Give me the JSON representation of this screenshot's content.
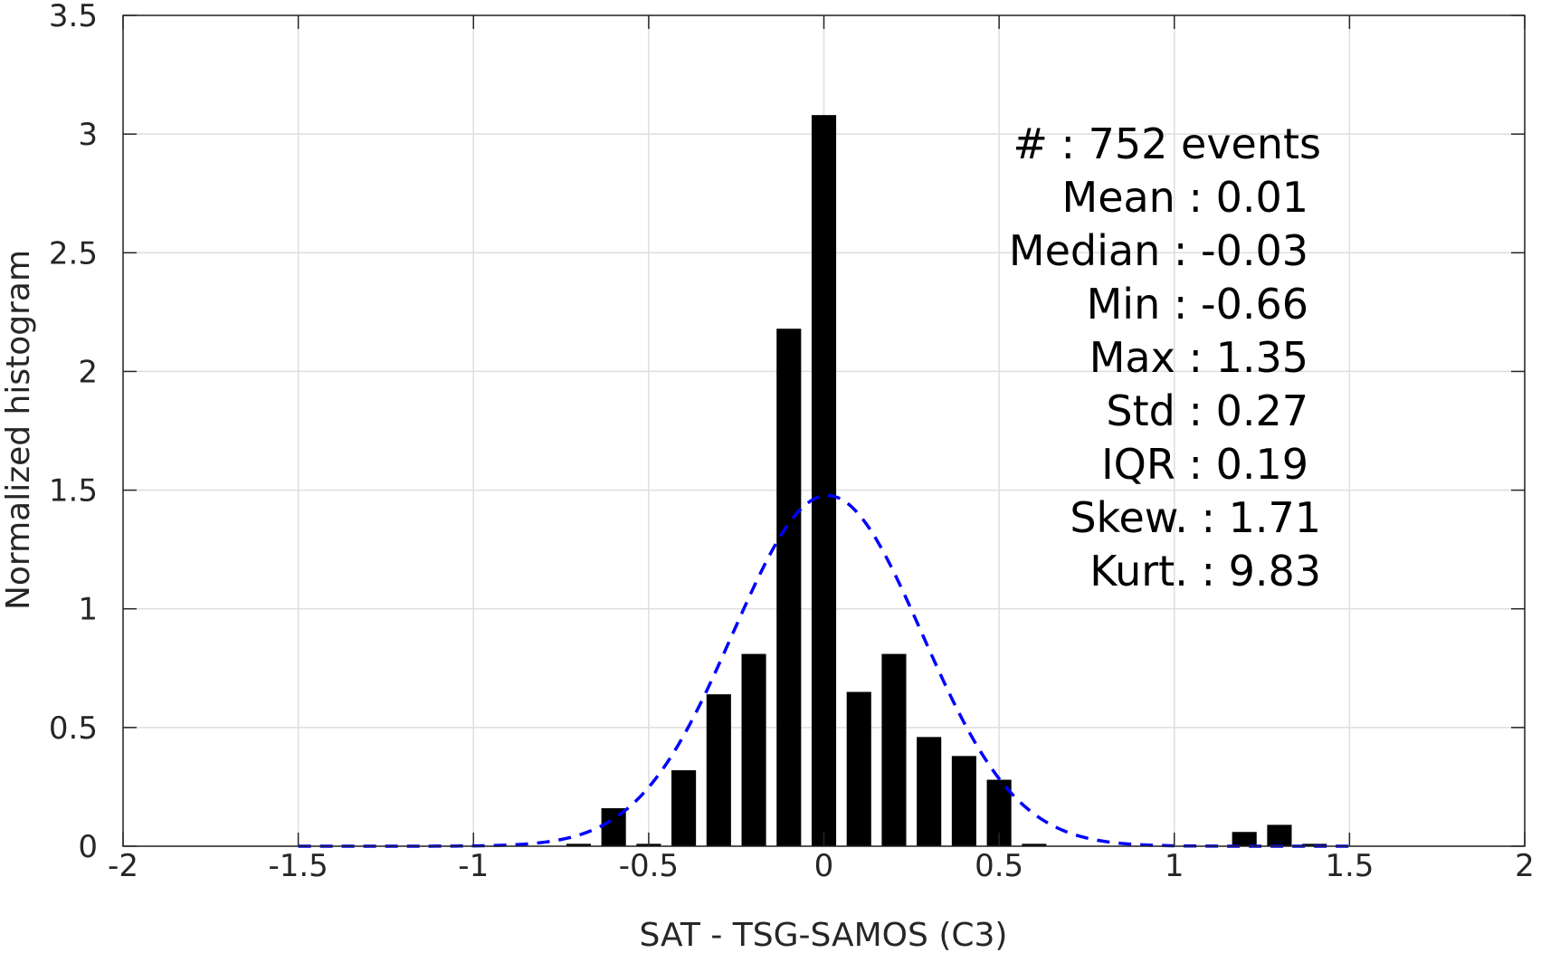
{
  "chart_data": {
    "type": "bar",
    "xlabel": "SAT - TSG-SAMOS (C3)",
    "ylabel": "Normalized histogram",
    "xlim": [
      -2,
      2
    ],
    "ylim": [
      0,
      3.5
    ],
    "xticks": [
      "-2",
      "-1.5",
      "-1",
      "-0.5",
      "0",
      "0.5",
      "1",
      "1.5",
      "2"
    ],
    "yticks": [
      "0",
      "0.5",
      "1",
      "1.5",
      "2",
      "2.5",
      "3",
      "3.5"
    ],
    "grid": true,
    "bar_width": 0.07,
    "bars": [
      {
        "x": -0.7,
        "y": 0.01
      },
      {
        "x": -0.6,
        "y": 0.16
      },
      {
        "x": -0.5,
        "y": 0.01
      },
      {
        "x": -0.4,
        "y": 0.32
      },
      {
        "x": -0.3,
        "y": 0.64
      },
      {
        "x": -0.2,
        "y": 0.81
      },
      {
        "x": -0.1,
        "y": 2.18
      },
      {
        "x": 0.0,
        "y": 3.08
      },
      {
        "x": 0.1,
        "y": 0.65
      },
      {
        "x": 0.2,
        "y": 0.81
      },
      {
        "x": 0.3,
        "y": 0.46
      },
      {
        "x": 0.4,
        "y": 0.38
      },
      {
        "x": 0.5,
        "y": 0.28
      },
      {
        "x": 0.6,
        "y": 0.01
      },
      {
        "x": 1.2,
        "y": 0.06
      },
      {
        "x": 1.3,
        "y": 0.09
      },
      {
        "x": 1.4,
        "y": 0.01
      }
    ],
    "fit_curve": {
      "type": "normal",
      "mean": 0.01,
      "std": 0.27,
      "x_range": [
        -1.5,
        1.5
      ],
      "style": "dashed",
      "color": "#0000ff"
    },
    "stats": {
      "count": "#  : 752 events",
      "mean": "Mean : 0.01",
      "median": "Median : -0.03",
      "min": "Min : -0.66",
      "max": "Max : 1.35",
      "std": "Std : 0.27",
      "iqr": "IQR : 0.19",
      "skew": "Skew. : 1.71",
      "kurt": "Kurt. : 9.83"
    },
    "colors": {
      "bars": "#000000",
      "grid": "#dedede",
      "axis": "#262626",
      "fit": "#0000ff"
    }
  }
}
